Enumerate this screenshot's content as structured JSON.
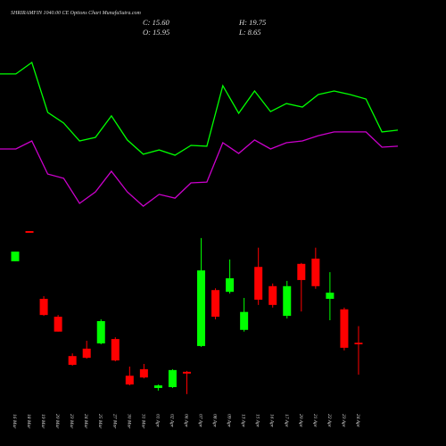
{
  "chart_data": {
    "type": "candlestick",
    "title": "SHRIRAMFIN 1040.00 CE Options  Chart MunafaSutra.com",
    "ohlc_text": [
      "C: 15.60",
      "H: 19.75",
      "O: 15.95",
      "L: 8.65"
    ],
    "categories": [
      "16 Mar",
      "18 Mar",
      "19 Mar",
      "20 Mar",
      "23 Mar",
      "24 Mar",
      "25 Mar",
      "27 Mar",
      "30 Mar",
      "31 Mar",
      "01 Apr",
      "02 Apr",
      "06 Apr",
      "07 Apr",
      "08 Apr",
      "09 Apr",
      "13 Apr",
      "15 Apr",
      "16 Apr",
      "17 Apr",
      "20 Apr",
      "21 Apr",
      "22 Apr",
      "23 Apr",
      "24 Apr"
    ],
    "open": [
      34.6,
      41.5,
      26.0,
      21.9,
      12.9,
      14.6,
      15.8,
      16.8,
      8.4,
      9.9,
      5.6,
      5.8,
      9.3,
      15.2,
      28.0,
      27.6,
      18.9,
      33.3,
      28.9,
      22.1,
      34.0,
      35.2,
      26.0,
      23.6,
      15.95
    ],
    "high": [
      36.8,
      41.5,
      26.6,
      22.3,
      13.5,
      16.4,
      21.3,
      17.2,
      10.5,
      11.1,
      6.4,
      9.9,
      9.5,
      39.9,
      28.4,
      35.0,
      26.2,
      37.7,
      29.5,
      30.1,
      34.2,
      37.7,
      32.1,
      24.0,
      19.75
    ],
    "low": [
      34.6,
      41.1,
      22.1,
      18.5,
      10.7,
      12.3,
      15.6,
      11.7,
      6.2,
      7.8,
      5.0,
      5.6,
      4.2,
      15.0,
      21.3,
      27.2,
      18.5,
      24.6,
      24.0,
      21.5,
      23.1,
      28.3,
      21.1,
      14.2,
      8.65
    ],
    "close": [
      36.8,
      41.1,
      22.3,
      18.5,
      10.9,
      12.5,
      20.9,
      11.9,
      6.4,
      8.0,
      6.2,
      9.7,
      8.9,
      32.5,
      21.9,
      30.7,
      23.0,
      25.8,
      24.6,
      28.9,
      30.3,
      28.9,
      27.4,
      14.8,
      15.6
    ],
    "up_color": "#00ff00",
    "down_color": "#ff0000",
    "ylim": [
      0,
      50
    ],
    "overlay_ylim": [
      -10,
      100
    ],
    "overlay_lines": [
      {
        "color": "#00ff00",
        "values": [
          81.7,
          81.7,
          88.9,
          57.8,
          51.1,
          40,
          42.2,
          55.6,
          40.6,
          31.7,
          34.4,
          31.1,
          37.2,
          36.7,
          74.4,
          57.2,
          71.1,
          58.3,
          63.3,
          61.1,
          68.9,
          71.1,
          68.9,
          66.1,
          45.6,
          46.7
        ]
      },
      {
        "color": "#cc00cc",
        "values": [
          35,
          35,
          40,
          19.4,
          16.7,
          1.1,
          8.3,
          21.1,
          8.3,
          -0.6,
          6.7,
          4.4,
          13.9,
          14.4,
          38.9,
          32.2,
          40.6,
          35,
          38.9,
          40,
          43.3,
          45.6,
          45.6,
          45.6,
          36.1,
          36.7
        ]
      }
    ]
  }
}
